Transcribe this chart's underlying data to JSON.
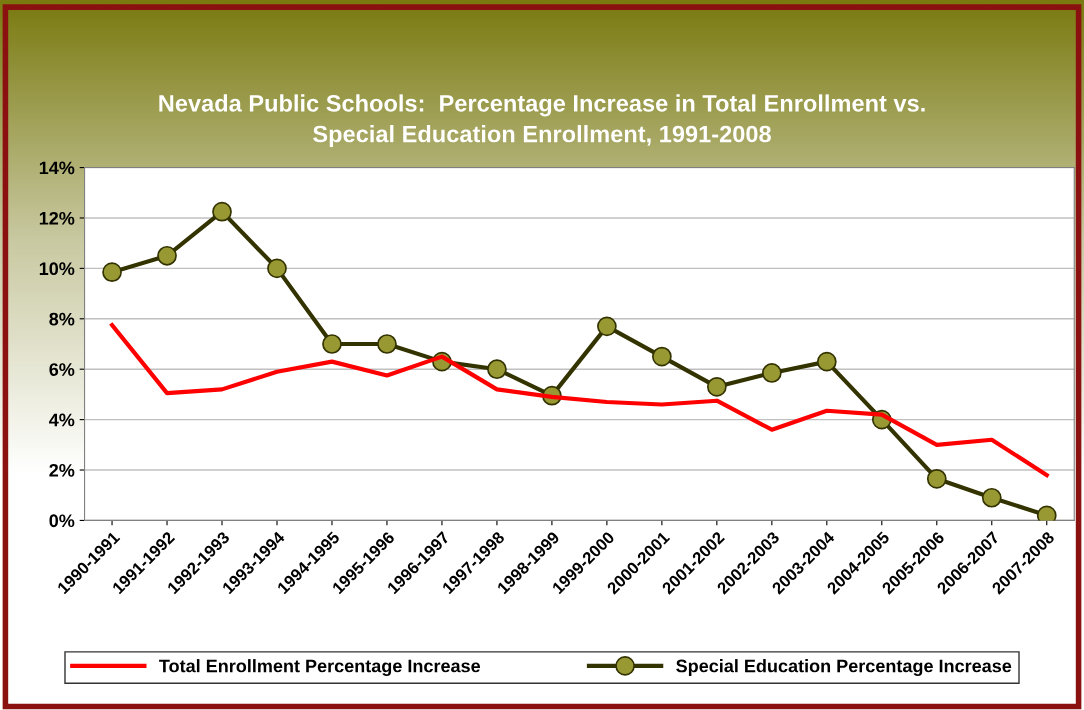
{
  "chart_data": {
    "type": "line",
    "title": "Nevada Public Schools:  Percentage Increase in Total Enrollment vs.\nSpecial Education Enrollment, 1991-2008",
    "categories": [
      "1990-1991",
      "1991-1992",
      "1992-1993",
      "1993-1994",
      "1994-1995",
      "1995-1996",
      "1996-1997",
      "1997-1998",
      "1998-1999",
      "1999-2000",
      "2000-2001",
      "2001-2002",
      "2002-2003",
      "2003-2004",
      "2004-2005",
      "2005-2006",
      "2006-2007",
      "2007-2008"
    ],
    "series": [
      {
        "name": "Total Enrollment Percentage Increase",
        "color": "#ff0000",
        "marker": "none",
        "values": [
          7.75,
          5.05,
          5.2,
          5.9,
          6.3,
          5.75,
          6.5,
          5.2,
          4.9,
          4.7,
          4.6,
          4.75,
          3.6,
          4.35,
          4.2,
          3.0,
          3.2,
          1.8
        ]
      },
      {
        "name": "Special Education Percentage Increase",
        "color": "#333300",
        "marker": "circle",
        "values": [
          9.85,
          10.5,
          12.25,
          10.0,
          7.0,
          7.0,
          6.3,
          6.0,
          4.95,
          7.7,
          6.5,
          5.3,
          5.85,
          6.3,
          4.0,
          1.65,
          0.9,
          0.2
        ]
      }
    ],
    "ylim": [
      0,
      14
    ],
    "yticks": [
      {
        "value": 0,
        "label": "0%"
      },
      {
        "value": 2,
        "label": "2%"
      },
      {
        "value": 4,
        "label": "4%"
      },
      {
        "value": 6,
        "label": "6%"
      },
      {
        "value": 8,
        "label": "8%"
      },
      {
        "value": 10,
        "label": "10%"
      },
      {
        "value": 12,
        "label": "12%"
      },
      {
        "value": 14,
        "label": "14%"
      }
    ],
    "grid": "y",
    "legend": "bottom"
  }
}
